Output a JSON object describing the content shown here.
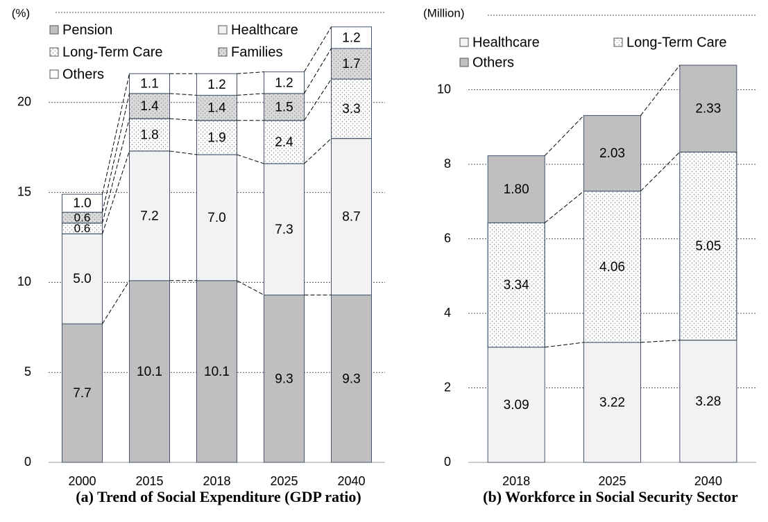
{
  "chart_data": [
    {
      "type": "stacked_bar",
      "ylabel": "(%)",
      "title": "(a) Trend of Social Expenditure (GDP ratio)",
      "categories": [
        "2000",
        "2015",
        "2018",
        "2025",
        "2040"
      ],
      "ylim": [
        0,
        25
      ],
      "yticks": [
        0,
        5,
        10,
        15,
        20
      ],
      "grid": true,
      "series": [
        {
          "name": "Pension",
          "color": "#bfbfbf",
          "values": [
            7.7,
            10.1,
            10.1,
            9.3,
            9.3
          ]
        },
        {
          "name": "Healthcare",
          "color": "#f2f2f2",
          "values": [
            5.0,
            7.2,
            7.0,
            7.3,
            8.7
          ],
          "value_labels": [
            "5.0",
            "7.2",
            "7.0",
            "7.3",
            "8.7"
          ]
        },
        {
          "name": "Long-Term Care",
          "color": "#ffffff",
          "pattern": "dots",
          "values": [
            0.6,
            1.8,
            1.9,
            2.4,
            3.3
          ]
        },
        {
          "name": "Families",
          "color": "#d9d9d9",
          "pattern": "dots",
          "values": [
            0.6,
            1.4,
            1.4,
            1.5,
            1.7
          ]
        },
        {
          "name": "Others",
          "color": "#ffffff",
          "values": [
            1.0,
            1.1,
            1.2,
            1.2,
            1.2
          ],
          "value_labels": [
            "1.0",
            "1.1",
            "1.2",
            "1.2",
            "1.2"
          ]
        }
      ]
    },
    {
      "type": "stacked_bar",
      "ylabel": "(Million)",
      "title": "(b) Workforce in Social Security Sector",
      "categories": [
        "2018",
        "2025",
        "2040"
      ],
      "ylim": [
        0,
        12
      ],
      "yticks": [
        0,
        2,
        4,
        6,
        8,
        10
      ],
      "grid": true,
      "series": [
        {
          "name": "Healthcare",
          "color": "#f2f2f2",
          "values": [
            3.09,
            3.22,
            3.28
          ]
        },
        {
          "name": "Long-Term Care",
          "color": "#ffffff",
          "pattern": "dots",
          "values": [
            3.34,
            4.06,
            5.05
          ]
        },
        {
          "name": "Others",
          "color": "#bfbfbf",
          "values": [
            1.8,
            2.03,
            2.33
          ],
          "value_labels": [
            "1.80",
            "2.03",
            "2.33"
          ]
        }
      ]
    }
  ]
}
